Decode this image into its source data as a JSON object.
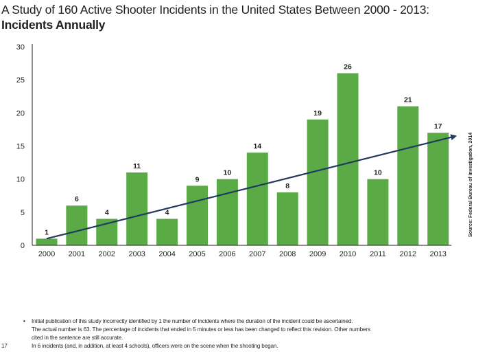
{
  "title": {
    "line1": "A Study of 160 Active Shooter Incidents in the United States Between 2000 - 2013:",
    "line2": "Incidents Annually"
  },
  "source_note": "Source: Federal Bureau of Investigation, 2014",
  "footnotes": [
    {
      "mark": "•",
      "lines": [
        "Initial publication of this study incorrectly identified by 1 the number of incidents where the duration of the incident could be ascertained.",
        "The actual number is 63. The percentage of incidents that ended in 5 minutes or less has been changed to reflect this revision. Other numbers",
        "cited in the sentence are still accurate."
      ]
    },
    {
      "mark": "17",
      "lines": [
        "In 6 incidents (and, in addition, at least 4 schools), officers were on the scene when the shooting began."
      ]
    }
  ],
  "chart_data": {
    "type": "bar",
    "categories": [
      "2000",
      "2001",
      "2002",
      "2003",
      "2004",
      "2005",
      "2006",
      "2007",
      "2008",
      "2009",
      "2010",
      "2011",
      "2012",
      "2013"
    ],
    "values": [
      1,
      6,
      4,
      11,
      4,
      9,
      10,
      14,
      8,
      19,
      26,
      10,
      21,
      17
    ],
    "data_labels": [
      "1",
      "6",
      "4",
      "11",
      "4",
      "9",
      "10",
      "14",
      "8",
      "19",
      "26",
      "10",
      "21",
      "17"
    ],
    "yticks": [
      "0",
      "5",
      "10",
      "15",
      "20",
      "25",
      "30"
    ],
    "ylim": [
      0,
      30
    ],
    "grid": false,
    "trend_arrow": {
      "from": [
        2000,
        1
      ],
      "to": [
        2013,
        16.5
      ]
    },
    "colors": {
      "bar": "#5aaa46",
      "trend": "#1f3a5c",
      "axis": "#231f20"
    }
  }
}
